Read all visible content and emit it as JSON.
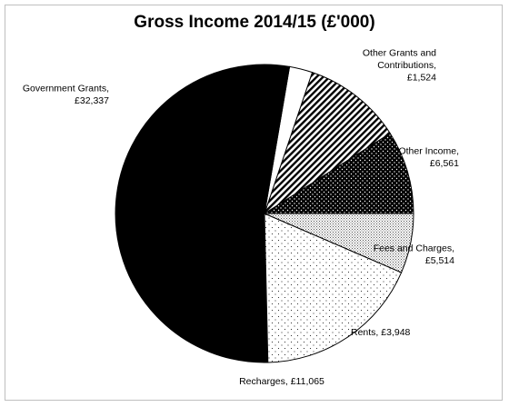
{
  "chart_data": {
    "type": "pie",
    "title": "Gross Income 2014/15 (£'000)",
    "start_angle_deg": 0,
    "direction": "counterclockwise",
    "slices": [
      {
        "label": "Fees and Charges, £5,514",
        "value": 5514,
        "pattern": "dots-dense-black"
      },
      {
        "label": "Other Income, £6,561",
        "value": 6561,
        "pattern": "diagonal-lines"
      },
      {
        "label": "Other Grants and Contributions, £1,524",
        "value": 1524,
        "pattern": "solid-white"
      },
      {
        "label": "Government Grants, £32,337",
        "value": 32337,
        "pattern": "solid-black"
      },
      {
        "label": "Recharges, £11,065",
        "value": 11065,
        "pattern": "sparse-dots"
      },
      {
        "label": "Rents, £3,948",
        "value": 3948,
        "pattern": "fine-grey-dots"
      }
    ],
    "labels_display": [
      [
        "Fees and Charges,",
        "£5,514"
      ],
      [
        "Other Income,",
        "£6,561"
      ],
      [
        "Other Grants and",
        "Contributions,",
        "£1,524"
      ],
      [
        "Government Grants,",
        "£32,337"
      ],
      [
        "Recharges, £11,065"
      ],
      [
        "Rents, £3,948"
      ]
    ],
    "legend": "none",
    "colors": {
      "outline": "#000000",
      "background": "#ffffff",
      "frame": "#bfbfbf"
    }
  }
}
